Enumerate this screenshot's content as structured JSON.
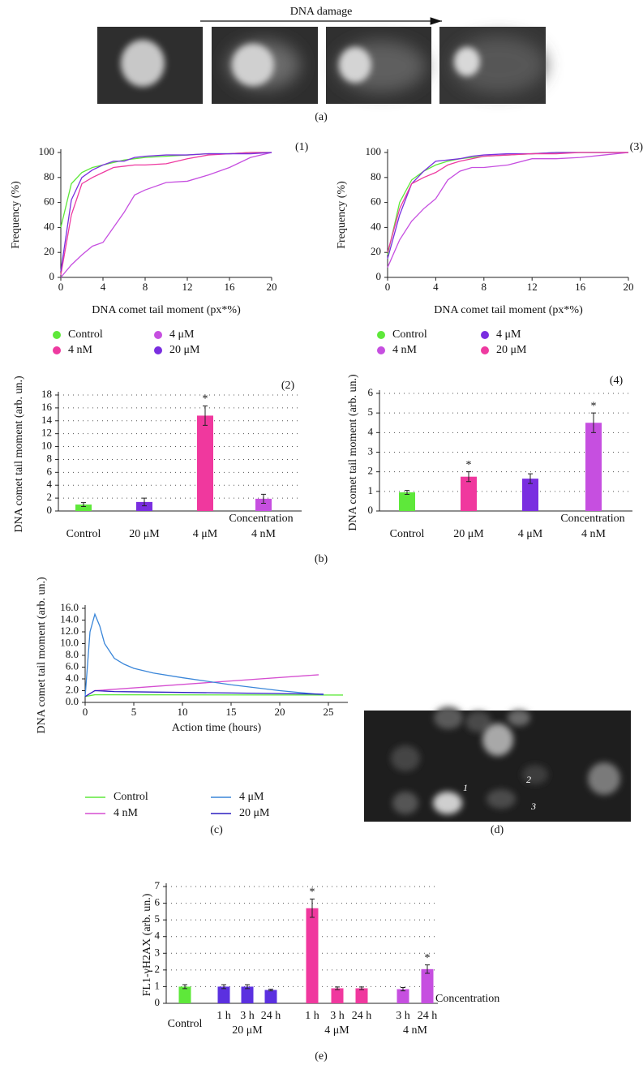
{
  "figure": {
    "arrow_label": "DNA damage",
    "panel_labels": [
      "(a)",
      "(b)",
      "(c)",
      "(d)",
      "(e)"
    ],
    "cell_labels": [
      "1",
      "2",
      "3"
    ]
  },
  "chart_data": [
    {
      "type": "line",
      "panel_label": "(1)",
      "xlabel": "DNA comet tail moment (px*%)",
      "ylabel": "Frequency (%)",
      "x": [
        0,
        1,
        2,
        3,
        4,
        5,
        6,
        7,
        8,
        10,
        12,
        14,
        16,
        18,
        20
      ],
      "xlim": [
        0,
        20
      ],
      "xticks": [
        0,
        4,
        8,
        12,
        16,
        20
      ],
      "ylim": [
        0,
        100
      ],
      "yticks": [
        0,
        20,
        40,
        60,
        80,
        100
      ],
      "series": [
        {
          "name": "Control",
          "color": "#5ee83a",
          "values": [
            40,
            75,
            84,
            88,
            90,
            92,
            94,
            95,
            96,
            97,
            98,
            99,
            99,
            100,
            100
          ]
        },
        {
          "name": "4 nM",
          "color": "#ee3aa0",
          "values": [
            2,
            50,
            75,
            80,
            84,
            88,
            89,
            90,
            90,
            91,
            95,
            98,
            99,
            100,
            100
          ]
        },
        {
          "name": "4 μM",
          "color": "#c64fe0",
          "values": [
            0,
            10,
            18,
            25,
            28,
            40,
            52,
            66,
            70,
            76,
            77,
            82,
            88,
            96,
            100
          ]
        },
        {
          "name": "20 μM",
          "color": "#7a2ee0",
          "values": [
            5,
            62,
            80,
            86,
            90,
            93,
            93,
            96,
            97,
            98,
            98,
            99,
            99,
            99,
            100
          ]
        }
      ]
    },
    {
      "type": "line",
      "panel_label": "(3)",
      "xlabel": "DNA comet tail moment (px*%)",
      "ylabel": "Frequency (%)",
      "x": [
        0,
        1,
        2,
        3,
        4,
        5,
        6,
        7,
        8,
        10,
        12,
        14,
        16,
        18,
        20
      ],
      "xlim": [
        0,
        20
      ],
      "xticks": [
        0,
        4,
        8,
        12,
        16,
        20
      ],
      "ylim": [
        0,
        100
      ],
      "yticks": [
        0,
        20,
        40,
        60,
        80,
        100
      ],
      "series": [
        {
          "name": "Control",
          "color": "#5ee83a",
          "values": [
            18,
            60,
            78,
            85,
            90,
            93,
            95,
            96,
            97,
            98,
            99,
            100,
            100,
            100,
            100
          ]
        },
        {
          "name": "4 nM",
          "color": "#c64fe0",
          "values": [
            8,
            30,
            45,
            55,
            63,
            78,
            85,
            88,
            88,
            90,
            95,
            95,
            96,
            98,
            100
          ]
        },
        {
          "name": "4 μM",
          "color": "#7a2ee0",
          "values": [
            15,
            50,
            75,
            85,
            93,
            94,
            95,
            97,
            98,
            99,
            99,
            100,
            100,
            100,
            100
          ]
        },
        {
          "name": "20 μM",
          "color": "#ee3aa0",
          "values": [
            20,
            55,
            75,
            80,
            84,
            90,
            93,
            95,
            97,
            98,
            99,
            99,
            100,
            100,
            100
          ]
        }
      ]
    },
    {
      "type": "bar",
      "panel_label": "(2)",
      "ylabel": "DNA comet tail moment (arb. un.)",
      "xlabel": "Concentration",
      "categories": [
        "Control",
        "20 μM",
        "4 μM",
        "4 nM"
      ],
      "values": [
        1.0,
        1.4,
        14.8,
        1.9
      ],
      "errors": [
        0.3,
        0.6,
        1.5,
        0.7
      ],
      "significance": [
        null,
        null,
        "*",
        null
      ],
      "colors": [
        "#5ee83a",
        "#7a2ee0",
        "#f0389e",
        "#c64fe0"
      ],
      "ylim": [
        0,
        18
      ],
      "yticks": [
        0,
        2,
        4,
        6,
        8,
        10,
        12,
        14,
        16,
        18
      ],
      "grid": true
    },
    {
      "type": "bar",
      "panel_label": "(4)",
      "ylabel": "DNA comet tail moment (arb. un.)",
      "xlabel": "Concentration",
      "categories": [
        "Control",
        "20 μM",
        "4 μM",
        "4 nM"
      ],
      "values": [
        0.95,
        1.75,
        1.65,
        4.5
      ],
      "errors": [
        0.1,
        0.25,
        0.25,
        0.5
      ],
      "significance": [
        null,
        "*",
        null,
        "*"
      ],
      "colors": [
        "#5ee83a",
        "#f0389e",
        "#7a2ee0",
        "#c64fe0"
      ],
      "ylim": [
        0,
        6
      ],
      "yticks": [
        0,
        1,
        2,
        3,
        4,
        5,
        6
      ],
      "grid": true
    },
    {
      "type": "line",
      "xlabel": "Action time (hours)",
      "ylabel": "DNA comet tail moment (arb. un.)",
      "xlim": [
        0,
        27
      ],
      "xticks": [
        0,
        5,
        10,
        15,
        20,
        25
      ],
      "ylim": [
        0,
        16
      ],
      "yticks": [
        {
          "value": 0,
          "label": "0.0"
        },
        {
          "value": 2,
          "label": "2.0"
        },
        {
          "value": 4,
          "label": "4.0"
        },
        {
          "value": 6,
          "label": "6.0"
        },
        {
          "value": 8,
          "label": "8.0"
        },
        {
          "value": 10,
          "label": "10.0"
        },
        {
          "value": 12,
          "label": "12.0"
        },
        {
          "value": 14,
          "label": "14.0"
        },
        {
          "value": 16,
          "label": "16.0"
        }
      ],
      "series": [
        {
          "name": "Control",
          "color": "#5ee83a",
          "x": [
            0,
            1,
            26.5
          ],
          "values": [
            1.0,
            1.3,
            1.25
          ]
        },
        {
          "name": "4 nM",
          "color": "#d54ed0",
          "x": [
            0,
            1,
            24
          ],
          "values": [
            1.0,
            2.0,
            4.7
          ]
        },
        {
          "name": "4 μM",
          "color": "#3a86d9",
          "x": [
            0,
            0.5,
            1,
            1.5,
            2,
            3,
            4,
            5,
            7,
            10,
            15,
            20,
            24.5
          ],
          "values": [
            1.0,
            12.0,
            15.0,
            13.0,
            10.0,
            7.5,
            6.5,
            5.8,
            5.0,
            4.2,
            3.0,
            2.0,
            1.3
          ]
        },
        {
          "name": "20 μM",
          "color": "#2c1fc0",
          "x": [
            0,
            1,
            3,
            5,
            10,
            15,
            20,
            24.5
          ],
          "values": [
            1.0,
            2.0,
            1.85,
            1.8,
            1.7,
            1.6,
            1.5,
            1.4
          ]
        }
      ]
    },
    {
      "type": "grouped_bar",
      "ylabel": "FL1-γH2AX (arb. un.)",
      "xlabel": "Concentration",
      "ylim": [
        0,
        7
      ],
      "yticks": [
        0,
        1,
        2,
        3,
        4,
        5,
        6,
        7
      ],
      "grid": true,
      "groups": [
        {
          "name": "Control",
          "color": "#5ee83a",
          "categories": [
            null
          ],
          "values": [
            1.0
          ],
          "errors": [
            0.12
          ],
          "significance": [
            null
          ]
        },
        {
          "name": "20 μM",
          "color": "#5b30e0",
          "categories": [
            "1 h",
            "3 h",
            "24 h"
          ],
          "values": [
            1.0,
            1.0,
            0.8
          ],
          "errors": [
            0.12,
            0.12,
            0.05
          ],
          "significance": [
            null,
            null,
            null
          ]
        },
        {
          "name": "4 μM",
          "color": "#f0389e",
          "categories": [
            "1 h",
            "3 h",
            "24 h"
          ],
          "values": [
            5.7,
            0.9,
            0.9
          ],
          "errors": [
            0.55,
            0.08,
            0.08
          ],
          "significance": [
            "*",
            null,
            null
          ]
        },
        {
          "name": "4 nM",
          "color": "#c64fe0",
          "categories": [
            "3 h",
            "24 h"
          ],
          "values": [
            0.85,
            2.05
          ],
          "errors": [
            0.1,
            0.25
          ],
          "significance": [
            null,
            "*"
          ]
        }
      ]
    }
  ]
}
